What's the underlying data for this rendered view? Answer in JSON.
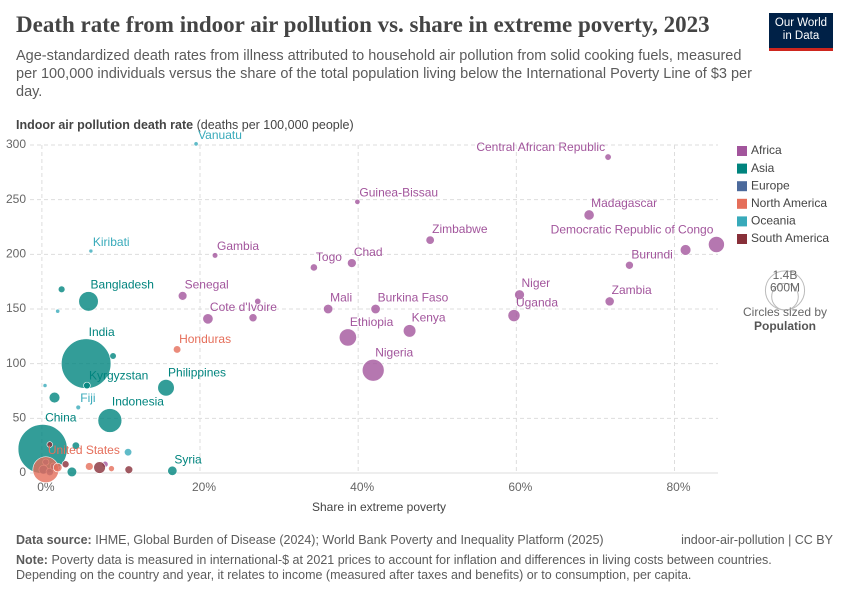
{
  "header": {
    "title": "Death rate from indoor air pollution vs. share in extreme poverty, 2023",
    "subtitle": "Age-standardized death rates from illness attributed to household air pollution from solid cooking fuels, measured per 100,000 individuals versus the share of the total population living below the International Poverty Line of $3 per day.",
    "logo": [
      "Our World",
      "in Data"
    ]
  },
  "chart_data": {
    "type": "scatter",
    "y_label": "Indoor air pollution death rate",
    "y_label_unit": "(deaths per 100,000 people)",
    "x_label": "Share in extreme poverty",
    "xlim": [
      -1.5,
      85.5
    ],
    "ylim": [
      0,
      300
    ],
    "xticks": [
      {
        "value": 0,
        "label": "0%"
      },
      {
        "value": 20,
        "label": "20%"
      },
      {
        "value": 40,
        "label": "40%"
      },
      {
        "value": 60,
        "label": "60%"
      },
      {
        "value": 80,
        "label": "80%"
      }
    ],
    "yticks": [
      0,
      50,
      100,
      150,
      200,
      250,
      300
    ],
    "grid": true,
    "legend": "right",
    "series": [
      {
        "name": "Africa",
        "color": "#a2559c",
        "labels": [
          "Central African Republic",
          "Guinea-Bissau",
          "Madagascar",
          "Zimbabwe",
          "Democratic Republic of Congo",
          "Gambia",
          "Chad",
          "Togo",
          "Burundi",
          "Senegal",
          "Niger",
          "Zambia",
          "Mali",
          "Burkina Faso",
          "Uganda",
          "Cote d'Ivoire",
          "Ethiopia",
          "Kenya",
          "Nigeria",
          null,
          null,
          null,
          null,
          null
        ],
        "x": [
          71.6,
          39.9,
          69.2,
          49.1,
          85.3,
          21.9,
          39.2,
          34.4,
          74.3,
          17.8,
          60.4,
          71.8,
          36.2,
          42.2,
          59.7,
          21.0,
          38.7,
          46.5,
          41.9,
          81.4,
          27.3,
          26.7,
          2.0,
          8.0
        ],
        "y": [
          289,
          248,
          236,
          213,
          209,
          199,
          192,
          188,
          190,
          162,
          163,
          157,
          150,
          150,
          144,
          141,
          124,
          130,
          94,
          204,
          157,
          142,
          5,
          8
        ],
        "size": [
          5500000,
          2100000,
          30000000,
          16000000,
          105000000,
          2700000,
          19000000,
          9000000,
          13000000,
          18000000,
          27000000,
          21000000,
          23000000,
          23000000,
          49000000,
          31000000,
          128000000,
          55000000,
          228000000,
          34000000,
          5000000,
          14000000,
          3000000,
          4000000
        ]
      },
      {
        "name": "Asia",
        "color": "#00847e",
        "labels": [
          "Bangladesh",
          "India",
          "Philippines",
          "Indonesia",
          "China",
          "Kyrgyzstan",
          "Syria",
          null,
          null,
          null,
          null,
          null
        ],
        "x": [
          5.9,
          5.6,
          15.7,
          8.6,
          0.1,
          5.7,
          16.5,
          2.5,
          1.6,
          4.3,
          3.8,
          9.0
        ],
        "y": [
          157,
          100,
          78,
          48,
          22,
          80,
          2,
          168,
          69,
          25,
          1,
          107
        ],
        "size": [
          173000000,
          1440000000,
          115000000,
          280000000,
          1410000000,
          7000000,
          23000000,
          7000000,
          35000000,
          10000000,
          25000000,
          6000000
        ]
      },
      {
        "name": "Europe",
        "color": "#4c6a9c",
        "labels": [
          null,
          null,
          null,
          null
        ],
        "x": [
          0.2,
          1.0,
          1.5,
          0.5
        ],
        "y": [
          3,
          1,
          6,
          10
        ],
        "size": [
          20000000,
          10000000,
          8000000,
          5000000
        ]
      },
      {
        "name": "North America",
        "color": "#e56e5a",
        "labels": [
          "Honduras",
          "United States",
          null,
          null,
          null
        ],
        "x": [
          17.1,
          0.5,
          2.0,
          6.0,
          8.8
        ],
        "y": [
          113,
          3,
          5,
          6,
          4
        ],
        "size": [
          10500000,
          340000000,
          18000000,
          12000000,
          4000000
        ]
      },
      {
        "name": "Oceania",
        "color": "#38aaba",
        "labels": [
          "Vanuatu",
          "Kiribati",
          "Fiji",
          null,
          null,
          null
        ],
        "x": [
          19.5,
          6.2,
          4.6,
          2.0,
          0.4,
          10.9
        ],
        "y": [
          301,
          203,
          60,
          148,
          80,
          19
        ],
        "size": [
          330000,
          130000,
          930000,
          300000,
          200000,
          10000000
        ]
      },
      {
        "name": "South America",
        "color": "#883039",
        "labels": [
          null,
          null,
          null,
          null
        ],
        "x": [
          7.3,
          11.0,
          3.0,
          1.0
        ],
        "y": [
          5,
          3,
          8,
          26
        ],
        "size": [
          45000000,
          12000000,
          8000000,
          3000000
        ]
      }
    ],
    "size_legend": {
      "title": "Circles sized by",
      "variable": "Population",
      "sizes": [
        {
          "value": 1400000000,
          "label": "1.4B"
        },
        {
          "value": 600000000,
          "label": "600M"
        }
      ]
    }
  },
  "footer": {
    "source_label": "Data source:",
    "source": "IHME, Global Burden of Disease (2024); World Bank Poverty and Inequality Platform (2025)",
    "slug": "indoor-air-pollution | CC BY",
    "note_label": "Note:",
    "note": "Poverty data is measured in international-$ at 2021 prices to account for inflation and differences in living costs between countries. Depending on the country and year, it relates to income (measured after taxes and benefits) or to consumption, per capita."
  }
}
